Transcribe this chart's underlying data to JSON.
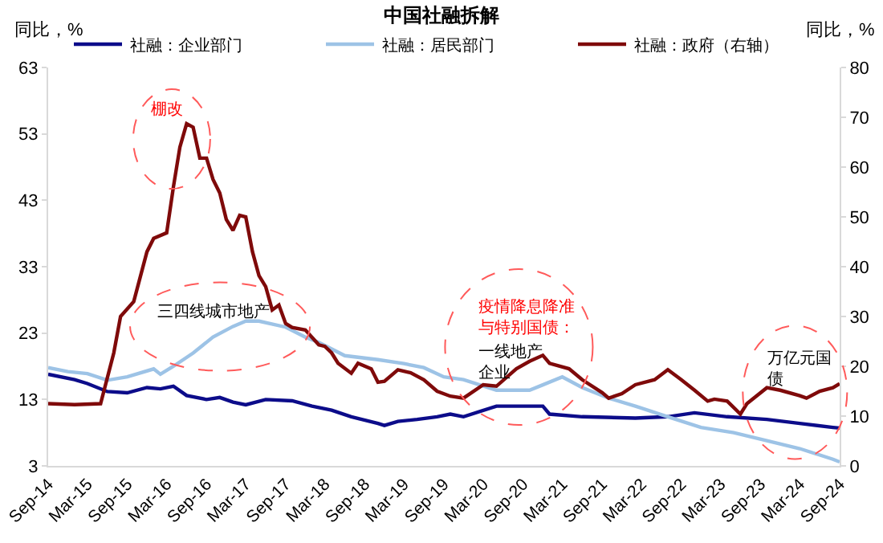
{
  "chart_data": {
    "type": "line",
    "title": "中国社融拆解",
    "ylabel": "同比，%",
    "y2label": "同比，%",
    "xlim": [
      "2014-09",
      "2024-09"
    ],
    "xticks": [
      {
        "value": "2014-09",
        "label": "Sep-14"
      },
      {
        "value": "2015-03",
        "label": "Mar-15"
      },
      {
        "value": "2015-09",
        "label": "Sep-15"
      },
      {
        "value": "2016-03",
        "label": "Mar-16"
      },
      {
        "value": "2016-09",
        "label": "Sep-16"
      },
      {
        "value": "2017-03",
        "label": "Mar-17"
      },
      {
        "value": "2017-09",
        "label": "Sep-17"
      },
      {
        "value": "2018-03",
        "label": "Mar-18"
      },
      {
        "value": "2018-09",
        "label": "Sep-18"
      },
      {
        "value": "2019-03",
        "label": "Mar-19"
      },
      {
        "value": "2019-09",
        "label": "Sep-19"
      },
      {
        "value": "2020-03",
        "label": "Mar-20"
      },
      {
        "value": "2020-09",
        "label": "Sep-20"
      },
      {
        "value": "2021-03",
        "label": "Mar-21"
      },
      {
        "value": "2021-09",
        "label": "Sep-21"
      },
      {
        "value": "2022-03",
        "label": "Mar-22"
      },
      {
        "value": "2022-09",
        "label": "Sep-22"
      },
      {
        "value": "2023-03",
        "label": "Mar-23"
      },
      {
        "value": "2023-09",
        "label": "Sep-23"
      },
      {
        "value": "2024-03",
        "label": "Mar-24"
      },
      {
        "value": "2024-09",
        "label": "Sep-24"
      }
    ],
    "ylim": [
      3,
      63
    ],
    "yticks": [
      3,
      13,
      23,
      33,
      43,
      53,
      63
    ],
    "y2lim": [
      0,
      80
    ],
    "y2ticks": [
      0,
      10,
      20,
      30,
      40,
      50,
      60,
      70,
      80
    ],
    "legend": "top",
    "grid": false,
    "marker": "none",
    "line_style": "solid",
    "series": [
      {
        "name": "社融：企业部门",
        "color": "#0c0c8a",
        "x": [
          "2014-09",
          "2015-01",
          "2015-03",
          "2015-06",
          "2015-09",
          "2015-12",
          "2016-02",
          "2016-04",
          "2016-06",
          "2016-09",
          "2016-11",
          "2017-01",
          "2017-03",
          "2017-06",
          "2017-10",
          "2018-01",
          "2018-04",
          "2018-07",
          "2018-11",
          "2018-12",
          "2019-02",
          "2019-05",
          "2019-08",
          "2019-10",
          "2019-12",
          "2020-05",
          "2020-12",
          "2021-01",
          "2021-06",
          "2022-02",
          "2022-07",
          "2022-11",
          "2023-04",
          "2023-10",
          "2024-03",
          "2024-08",
          "2024-09"
        ],
        "values": [
          16.8,
          16,
          15.4,
          14.2,
          14,
          14.8,
          14.6,
          15,
          13.6,
          13,
          13.3,
          12.6,
          12.2,
          13,
          12.8,
          12,
          11.4,
          10.4,
          9.4,
          9.1,
          9.7,
          10,
          10.4,
          10.8,
          10.4,
          12,
          12,
          10.8,
          10.4,
          10.2,
          10.4,
          11,
          10.4,
          10,
          9.4,
          8.8,
          8.7
        ]
      },
      {
        "name": "社融：居民部门",
        "color": "#9dc3e6",
        "x": [
          "2014-09",
          "2014-12",
          "2015-03",
          "2015-06",
          "2015-09",
          "2016-01",
          "2016-02",
          "2016-04",
          "2016-07",
          "2016-10",
          "2017-01",
          "2017-03",
          "2017-05",
          "2017-09",
          "2017-12",
          "2018-02",
          "2018-06",
          "2018-11",
          "2019-03",
          "2019-06",
          "2019-09",
          "2019-12",
          "2020-05",
          "2020-10",
          "2020-12",
          "2021-03",
          "2021-06",
          "2021-10",
          "2022-02",
          "2022-07",
          "2022-12",
          "2023-05",
          "2023-10",
          "2024-03",
          "2024-08",
          "2024-09"
        ],
        "values": [
          17.8,
          17.2,
          16.9,
          15.9,
          16.4,
          17.6,
          16.8,
          18,
          20,
          22.4,
          24,
          24.8,
          24.8,
          23.9,
          22.4,
          21.6,
          19.6,
          19,
          18.4,
          17.8,
          16.4,
          16,
          14.4,
          14.4,
          15.2,
          16.4,
          14.8,
          13.2,
          12,
          10.4,
          8.8,
          8,
          6.8,
          5.6,
          4,
          3.6
        ]
      },
      {
        "name": "社融：政府（右轴）",
        "color": "#7f0a0a",
        "axis": "y2",
        "x": [
          "2014-09",
          "2015-01",
          "2015-05",
          "2015-07",
          "2015-08",
          "2015-10",
          "2015-12",
          "2016-01",
          "2016-03",
          "2016-04",
          "2016-05",
          "2016-06",
          "2016-07",
          "2016-08",
          "2016-09",
          "2016-10",
          "2016-11",
          "2016-12",
          "2017-01",
          "2017-02",
          "2017-03",
          "2017-04",
          "2017-05",
          "2017-06",
          "2017-07",
          "2017-08",
          "2017-09",
          "2017-10",
          "2017-12",
          "2018-02",
          "2018-03",
          "2018-04",
          "2018-05",
          "2018-07",
          "2018-08",
          "2018-10",
          "2018-11",
          "2018-12",
          "2019-02",
          "2019-04",
          "2019-06",
          "2019-08",
          "2019-10",
          "2019-12",
          "2020-03",
          "2020-05",
          "2020-08",
          "2020-10",
          "2020-12",
          "2021-01",
          "2021-04",
          "2021-06",
          "2021-09",
          "2021-10",
          "2021-12",
          "2022-02",
          "2022-05",
          "2022-07",
          "2022-09",
          "2022-11",
          "2023-01",
          "2023-02",
          "2023-04",
          "2023-06",
          "2023-07",
          "2023-10",
          "2023-12",
          "2024-03",
          "2024-04",
          "2024-06",
          "2024-08",
          "2024-09"
        ],
        "values": [
          12.5,
          12.3,
          12.5,
          22.7,
          30,
          33,
          43,
          45.7,
          46.8,
          56,
          64,
          68.7,
          68,
          61.8,
          61.8,
          57.5,
          54.8,
          49.5,
          47.3,
          50.3,
          50,
          43,
          38.2,
          36,
          31.3,
          32.3,
          28.6,
          27.8,
          27.3,
          24.3,
          24,
          22.7,
          20.6,
          18.6,
          20.6,
          19.5,
          16.8,
          17,
          19.3,
          18.7,
          17.3,
          15,
          14,
          13.6,
          16.3,
          16,
          19.5,
          21,
          22.2,
          20.6,
          19.5,
          17.3,
          14.7,
          13.6,
          14.5,
          16.3,
          17.3,
          19.3,
          17.3,
          15.2,
          13,
          13.4,
          13,
          10.4,
          12.5,
          15.7,
          15.2,
          14.1,
          13.6,
          15,
          15.7,
          16.5
        ]
      }
    ],
    "annotations": [
      "棚改",
      "三四线城市地产",
      "疫情降息降准与特别国债：",
      "一线地产企业",
      "万亿元国债"
    ]
  }
}
